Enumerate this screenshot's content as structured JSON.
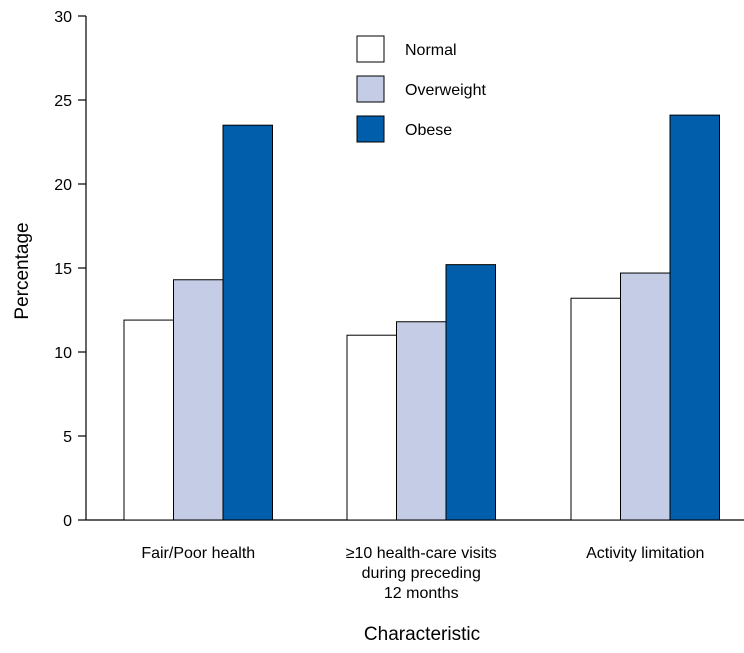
{
  "chart_data": {
    "type": "bar",
    "title": "",
    "xlabel": "Characteristic",
    "ylabel": "Percentage",
    "ylim": [
      0,
      30
    ],
    "yticks": [
      0,
      5,
      10,
      15,
      20,
      25,
      30
    ],
    "categories": [
      [
        "Fair/Poor health"
      ],
      [
        "≥10 health-care visits",
        "during preceding",
        "12 months"
      ],
      [
        "Activity limitation"
      ]
    ],
    "series": [
      {
        "name": "Normal",
        "color": "#ffffff",
        "values": [
          11.9,
          11.0,
          13.2
        ]
      },
      {
        "name": "Overweight",
        "color": "#c5cde6",
        "values": [
          14.3,
          11.8,
          14.7
        ]
      },
      {
        "name": "Obese",
        "color": "#005eaa",
        "values": [
          23.5,
          15.2,
          24.1
        ]
      }
    ],
    "grid": false,
    "legend_position": "top-center"
  }
}
